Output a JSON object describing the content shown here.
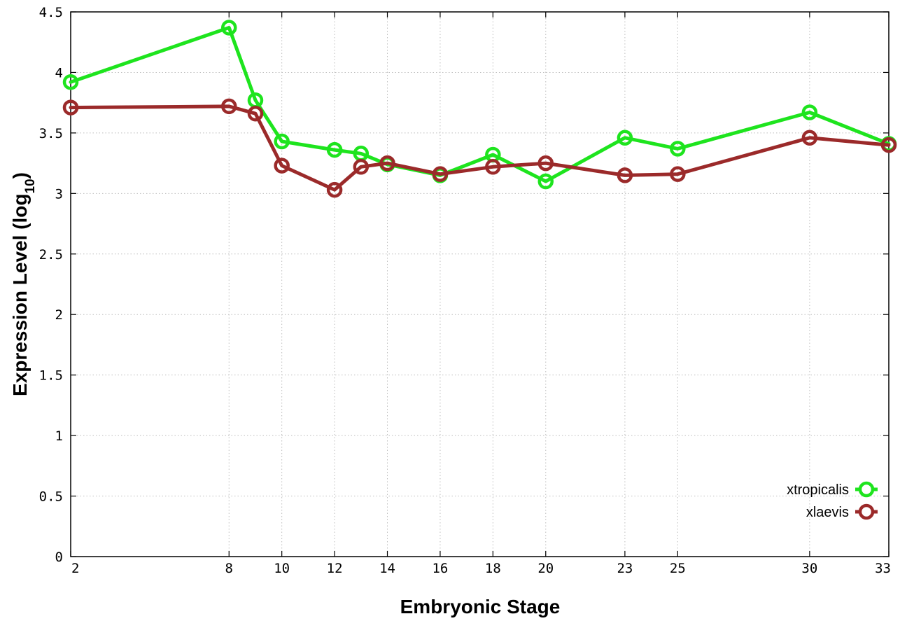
{
  "chart_data": {
    "type": "line",
    "title": "",
    "xlabel": "Embryonic Stage",
    "ylabel_main": "Expression Level (log",
    "ylabel_sub": "10",
    "ylabel_close": ")",
    "xlim": [
      2,
      33
    ],
    "ylim": [
      0,
      4.5
    ],
    "x_ticks": [
      "2",
      "8",
      "10",
      "12",
      "14",
      "16",
      "18",
      "20",
      "23",
      "25",
      "30",
      "33"
    ],
    "y_ticks": [
      "0",
      "0.5",
      "1",
      "1.5",
      "2",
      "2.5",
      "3",
      "3.5",
      "4",
      "4.5"
    ],
    "grid": true,
    "legend_position": "bottom-right",
    "series": [
      {
        "name": "xtropicalis",
        "color": "#1ee41e",
        "x": [
          2,
          8,
          9,
          10,
          12,
          13,
          14,
          16,
          18,
          20,
          23,
          25,
          30,
          33
        ],
        "y": [
          3.92,
          4.37,
          3.77,
          3.43,
          3.36,
          3.33,
          3.24,
          3.15,
          3.32,
          3.1,
          3.46,
          3.37,
          3.67,
          3.41
        ]
      },
      {
        "name": "xlaevis",
        "color": "#9b2a2a",
        "x": [
          2,
          8,
          9,
          10,
          12,
          13,
          14,
          16,
          18,
          20,
          23,
          25,
          30,
          33
        ],
        "y": [
          3.71,
          3.72,
          3.66,
          3.23,
          3.03,
          3.22,
          3.25,
          3.16,
          3.22,
          3.25,
          3.15,
          3.16,
          3.46,
          3.4
        ]
      }
    ]
  }
}
